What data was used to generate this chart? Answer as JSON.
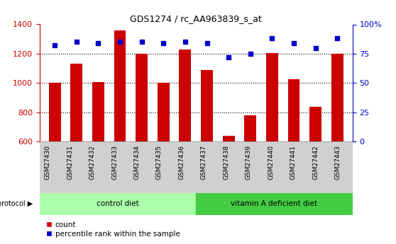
{
  "title": "GDS1274 / rc_AA963839_s_at",
  "samples": [
    "GSM27430",
    "GSM27431",
    "GSM27432",
    "GSM27433",
    "GSM27434",
    "GSM27435",
    "GSM27436",
    "GSM27437",
    "GSM27438",
    "GSM27439",
    "GSM27440",
    "GSM27441",
    "GSM27442",
    "GSM27443"
  ],
  "counts": [
    1000,
    1130,
    1005,
    1360,
    1200,
    1000,
    1230,
    1090,
    640,
    780,
    1205,
    1025,
    835,
    1200
  ],
  "percentile_ranks": [
    82,
    85,
    84,
    85,
    85,
    84,
    85,
    84,
    72,
    75,
    88,
    84,
    80,
    88
  ],
  "ylim_left": [
    600,
    1400
  ],
  "ylim_right": [
    0,
    100
  ],
  "yticks_left": [
    600,
    800,
    1000,
    1200,
    1400
  ],
  "yticks_right": [
    0,
    25,
    50,
    75,
    100
  ],
  "ytick_labels_right": [
    "0",
    "25",
    "50",
    "75",
    "100%"
  ],
  "bar_color": "#cc0000",
  "dot_color": "#0000cc",
  "grid_color": "#000000",
  "bg_color": "#ffffff",
  "n_control": 7,
  "control_diet_label": "control diet",
  "vitamin_diet_label": "vitamin A deficient diet",
  "protocol_label": "protocol",
  "legend_count_label": "count",
  "legend_percentile_label": "percentile rank within the sample",
  "control_band_color": "#aaffaa",
  "vitamin_band_color": "#44cc44",
  "tick_label_color_left": "#cc0000",
  "tick_label_color_right": "#0000cc",
  "sample_bg_color": "#d0d0d0",
  "title_color": "#000000"
}
